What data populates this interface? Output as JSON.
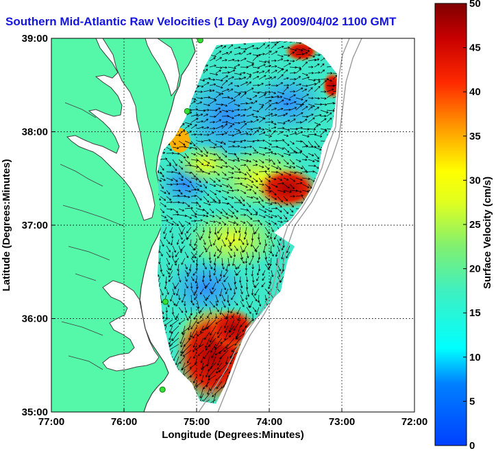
{
  "title": "Southern Mid-Atlantic Raw Velocities (1 Day Avg) 2009/04/02 1100 GMT",
  "map": {
    "xlabel": "Longitude (Degrees:Minutes)",
    "ylabel": "Latitude (Degrees:Minutes)",
    "x_ticks": [
      "77:00",
      "76:00",
      "75:00",
      "74:00",
      "73:00",
      "72:00"
    ],
    "y_ticks": [
      "39:00",
      "38:00",
      "37:00",
      "36:00",
      "35:00"
    ],
    "lon_range": [
      -77,
      -72
    ],
    "lat_range": [
      35,
      39
    ],
    "grid": true,
    "land_color": "#55f7a8",
    "coast_color": "#404040",
    "bathymetry_color": "#9a9a9a"
  },
  "colorbar": {
    "label": "Surface Velocity (cm/s)",
    "range": [
      0,
      50
    ],
    "ticks": [
      "0",
      "5",
      "10",
      "15",
      "20",
      "25",
      "30",
      "35",
      "40",
      "45",
      "50"
    ],
    "colormap": "jet"
  },
  "stations": [
    {
      "lon": -74.95,
      "lat": 38.98
    },
    {
      "lon": -75.13,
      "lat": 38.22
    },
    {
      "lon": -75.43,
      "lat": 36.18
    },
    {
      "lon": -75.47,
      "lat": 35.24
    }
  ]
}
